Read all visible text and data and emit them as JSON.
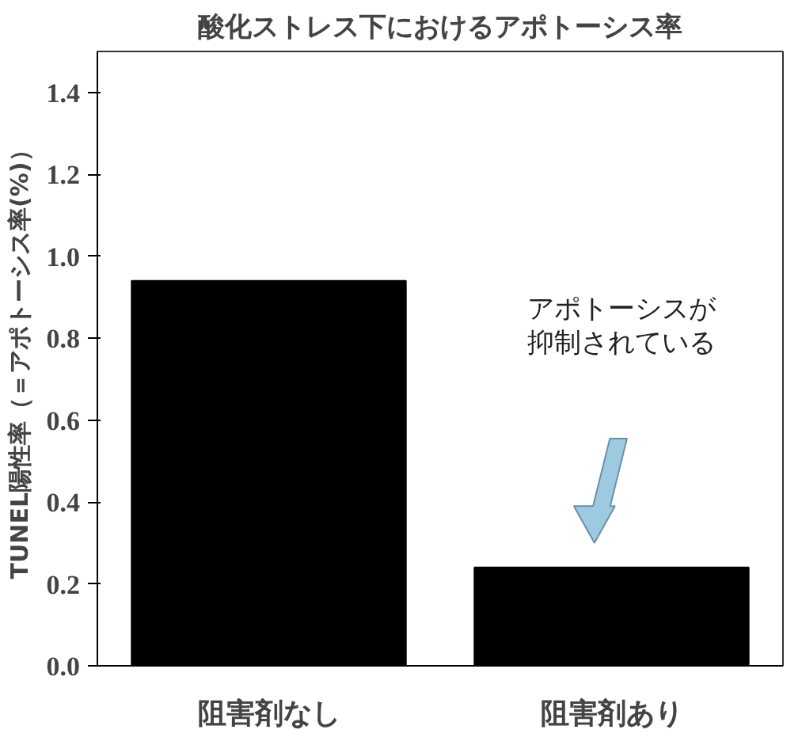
{
  "chart_data": {
    "type": "bar",
    "title": "酸化ストレス下におけるアポトーシス率",
    "ylabel": "TUNEL陽性率（＝アポトーシス率(%)）",
    "categories": [
      "阻害剤なし",
      "阻害剤あり"
    ],
    "values": [
      0.94,
      0.24
    ],
    "color": "#000000",
    "ylim": [
      0,
      1.5
    ],
    "yticks": [
      {
        "value": 0,
        "label": "0.0"
      },
      0.2,
      0.4,
      0.6,
      0.8,
      {
        "value": 1,
        "label": "1.0"
      },
      1.2,
      1.4
    ],
    "grid": false,
    "annotations": [
      "アポトーシスが",
      "抑制されている"
    ]
  }
}
